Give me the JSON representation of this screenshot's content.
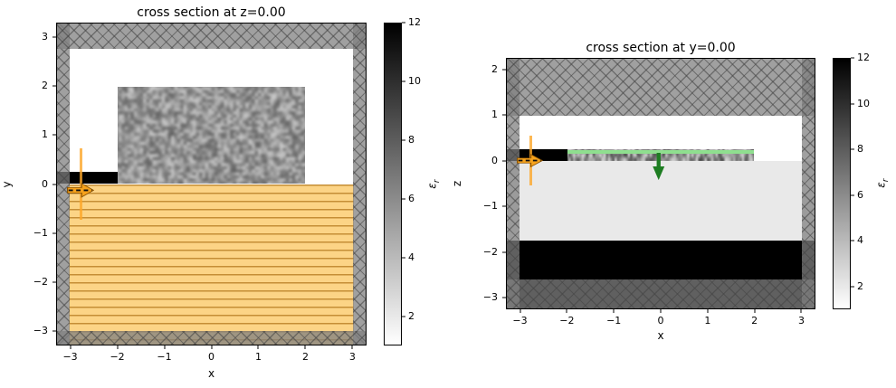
{
  "chart_data": [
    {
      "type": "heatmap",
      "title": "cross section at z=0.00",
      "xlabel": "x",
      "ylabel": "y",
      "xlim": [
        -3.3,
        3.3
      ],
      "ylim": [
        -3.3,
        3.3
      ],
      "xticks": [
        -3,
        -2,
        -1,
        0,
        1,
        2,
        3
      ],
      "yticks": [
        -3,
        -2,
        -1,
        0,
        1,
        2,
        3
      ],
      "colorbar": {
        "label_main": "ε",
        "label_sub": "r",
        "min": 1,
        "max": 12,
        "ticks": [
          2,
          4,
          6,
          8,
          10,
          12
        ]
      },
      "regions": [
        {
          "name": "substrate-hatched-overlay",
          "kind": "orange",
          "x": [
            -3.05,
            3.05
          ],
          "y": [
            -3.3,
            0
          ]
        },
        {
          "name": "design-region-noise",
          "kind": "noise",
          "x": [
            -2,
            2
          ],
          "y": [
            0,
            2
          ],
          "eps": "random 1-12"
        },
        {
          "name": "input-waveguide",
          "kind": "black",
          "x": [
            -3.3,
            -2
          ],
          "y": [
            0,
            0.26
          ],
          "eps": 12
        },
        {
          "name": "pml-left",
          "kind": "pml",
          "x": [
            -3.3,
            -3.03
          ],
          "y": [
            -3.3,
            3.3
          ]
        },
        {
          "name": "pml-right",
          "kind": "pml",
          "x": [
            3.03,
            3.3
          ],
          "y": [
            -3.3,
            3.3
          ]
        },
        {
          "name": "pml-top",
          "kind": "pml",
          "x": [
            -3.3,
            3.3
          ],
          "y": [
            2.78,
            3.3
          ]
        },
        {
          "name": "pml-bottom",
          "kind": "pml",
          "x": [
            -3.3,
            3.3
          ],
          "y": [
            -3.3,
            -3.03
          ]
        },
        {
          "name": "source-line",
          "kind": "vline-orange",
          "x": [
            -2.78,
            -2.78
          ],
          "y": [
            -0.73,
            0.73
          ]
        },
        {
          "name": "source-direction-arrow",
          "kind": "arrow-right",
          "x": [
            -3.08,
            -2.5
          ],
          "y": [
            -0.3,
            0.05
          ]
        }
      ]
    },
    {
      "type": "heatmap",
      "title": "cross section at y=0.00",
      "xlabel": "x",
      "ylabel": "z",
      "xlim": [
        -3.3,
        3.3
      ],
      "ylim": [
        -3.25,
        2.25
      ],
      "xticks": [
        -3,
        -2,
        -1,
        0,
        1,
        2,
        3
      ],
      "yticks": [
        -3,
        -2,
        -1,
        0,
        1,
        2
      ],
      "colorbar": {
        "label_main": "ε",
        "label_sub": "r",
        "min": 1,
        "max": 12,
        "ticks": [
          2,
          4,
          6,
          8,
          10,
          12
        ]
      },
      "regions": [
        {
          "name": "oxide-layer",
          "kind": "lightgray",
          "x": [
            -3.3,
            3.3
          ],
          "y": [
            -1.75,
            0
          ],
          "eps": 2
        },
        {
          "name": "bottom-slab",
          "kind": "black",
          "x": [
            -3.3,
            3.3
          ],
          "y": [
            -3.25,
            -1.75
          ],
          "eps": 12
        },
        {
          "name": "design-region-noise",
          "kind": "noise-strip",
          "x": [
            -2,
            2
          ],
          "y": [
            0,
            0.25
          ],
          "eps": "random 1-12"
        },
        {
          "name": "input-waveguide",
          "kind": "black",
          "x": [
            -3.3,
            -2
          ],
          "y": [
            0,
            0.25
          ],
          "eps": 12
        },
        {
          "name": "pml-left",
          "kind": "pml",
          "x": [
            -3.3,
            -3.03
          ],
          "y": [
            -3.25,
            2.25
          ]
        },
        {
          "name": "pml-right",
          "kind": "pml",
          "x": [
            3.03,
            3.3
          ],
          "y": [
            -3.25,
            2.25
          ]
        },
        {
          "name": "pml-top",
          "kind": "pml",
          "x": [
            -3.3,
            3.3
          ],
          "y": [
            1.0,
            2.25
          ]
        },
        {
          "name": "pml-bottom",
          "kind": "pml",
          "x": [
            -3.3,
            3.3
          ],
          "y": [
            -3.25,
            -2.62
          ]
        },
        {
          "name": "monitor-line",
          "kind": "hline-green",
          "x": [
            -2,
            2
          ],
          "y": [
            0.2,
            0.2
          ]
        },
        {
          "name": "source-line",
          "kind": "vline-orange",
          "x": [
            -2.78,
            -2.78
          ],
          "y": [
            -0.55,
            0.55
          ]
        },
        {
          "name": "source-direction-arrow",
          "kind": "arrow-right",
          "x": [
            -3.08,
            -2.52
          ],
          "y": [
            -0.17,
            0.17
          ]
        },
        {
          "name": "monitor-direction-arrow",
          "kind": "arrow-down",
          "x": [
            -0.2,
            0.1
          ],
          "y": [
            -0.42,
            0.18
          ]
        }
      ]
    }
  ]
}
